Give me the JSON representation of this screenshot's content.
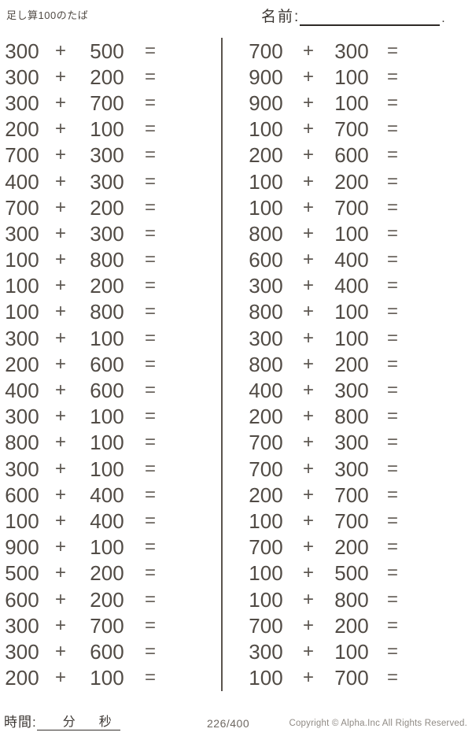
{
  "header": {
    "title": "足し算100のたば",
    "name_label": "名前:",
    "name_suffix": "."
  },
  "problems": {
    "operator": "+",
    "equals": "=",
    "left": [
      {
        "a": "300",
        "b": "500"
      },
      {
        "a": "300",
        "b": "200"
      },
      {
        "a": "300",
        "b": "700"
      },
      {
        "a": "200",
        "b": "100"
      },
      {
        "a": "700",
        "b": "300"
      },
      {
        "a": "400",
        "b": "300"
      },
      {
        "a": "700",
        "b": "200"
      },
      {
        "a": "300",
        "b": "300"
      },
      {
        "a": "100",
        "b": "800"
      },
      {
        "a": "100",
        "b": "200"
      },
      {
        "a": "100",
        "b": "800"
      },
      {
        "a": "300",
        "b": "100"
      },
      {
        "a": "200",
        "b": "600"
      },
      {
        "a": "400",
        "b": "600"
      },
      {
        "a": "300",
        "b": "100"
      },
      {
        "a": "800",
        "b": "100"
      },
      {
        "a": "300",
        "b": "100"
      },
      {
        "a": "600",
        "b": "400"
      },
      {
        "a": "100",
        "b": "400"
      },
      {
        "a": "900",
        "b": "100"
      },
      {
        "a": "500",
        "b": "200"
      },
      {
        "a": "600",
        "b": "200"
      },
      {
        "a": "300",
        "b": "700"
      },
      {
        "a": "300",
        "b": "600"
      },
      {
        "a": "200",
        "b": "100"
      }
    ],
    "right": [
      {
        "a": "700",
        "b": "300"
      },
      {
        "a": "900",
        "b": "100"
      },
      {
        "a": "900",
        "b": "100"
      },
      {
        "a": "100",
        "b": "700"
      },
      {
        "a": "200",
        "b": "600"
      },
      {
        "a": "100",
        "b": "200"
      },
      {
        "a": "100",
        "b": "700"
      },
      {
        "a": "800",
        "b": "100"
      },
      {
        "a": "600",
        "b": "400"
      },
      {
        "a": "300",
        "b": "400"
      },
      {
        "a": "800",
        "b": "100"
      },
      {
        "a": "300",
        "b": "100"
      },
      {
        "a": "800",
        "b": "200"
      },
      {
        "a": "400",
        "b": "300"
      },
      {
        "a": "200",
        "b": "800"
      },
      {
        "a": "700",
        "b": "300"
      },
      {
        "a": "700",
        "b": "300"
      },
      {
        "a": "200",
        "b": "700"
      },
      {
        "a": "100",
        "b": "700"
      },
      {
        "a": "700",
        "b": "200"
      },
      {
        "a": "100",
        "b": "500"
      },
      {
        "a": "100",
        "b": "800"
      },
      {
        "a": "700",
        "b": "200"
      },
      {
        "a": "300",
        "b": "100"
      },
      {
        "a": "100",
        "b": "700"
      }
    ]
  },
  "footer": {
    "time_label": "時間:",
    "minutes_label": "分",
    "seconds_label": "秒",
    "page": "226/400",
    "copyright": "Copyright ©  Alpha.Inc All Rights Reserved."
  },
  "colors": {
    "ink": "#514b45",
    "muted": "#8f8a84"
  }
}
